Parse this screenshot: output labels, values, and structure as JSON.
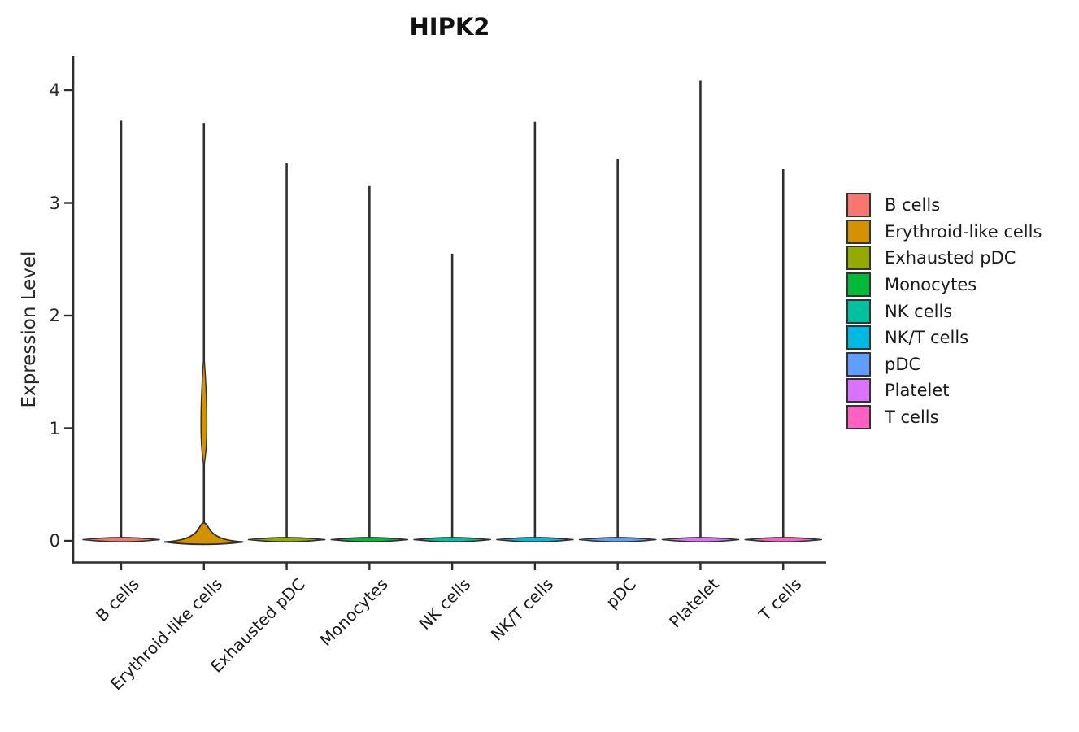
{
  "chart_data": {
    "type": "violin",
    "title": "HIPK2",
    "xlabel": "",
    "ylabel": "Expression Level",
    "ylim": [
      0,
      4.3
    ],
    "yticks": [
      0,
      1,
      2,
      3,
      4
    ],
    "grid": "off",
    "legend_position": "right",
    "axis_color": "#2e2e2e",
    "violin_outline_color": "#303030",
    "categories": [
      "B cells",
      "Erythroid-like cells",
      "Exhausted pDC",
      "Monocytes",
      "NK cells",
      "NK/T cells",
      "pDC",
      "Platelet",
      "T cells"
    ],
    "series": [
      {
        "name": "B cells",
        "color": "#F8766D",
        "max_expression": 3.73,
        "density_peak_at": 0
      },
      {
        "name": "Erythroid-like cells",
        "color": "#D39200",
        "max_expression": 3.71,
        "density_peak_at": 0,
        "base_bulge_peak_value": 0.16,
        "mid_spindle_value_range": [
          0.66,
          1.65
        ]
      },
      {
        "name": "Exhausted pDC",
        "color": "#93AA00",
        "max_expression": 3.35,
        "density_peak_at": 0
      },
      {
        "name": "Monocytes",
        "color": "#00BA38",
        "max_expression": 3.15,
        "density_peak_at": 0
      },
      {
        "name": "NK cells",
        "color": "#00C19F",
        "max_expression": 2.55,
        "density_peak_at": 0
      },
      {
        "name": "NK/T cells",
        "color": "#00B9E3",
        "max_expression": 3.72,
        "density_peak_at": 0
      },
      {
        "name": "pDC",
        "color": "#619CFF",
        "max_expression": 3.39,
        "density_peak_at": 0
      },
      {
        "name": "Platelet",
        "color": "#DB72FB",
        "max_expression": 4.09,
        "density_peak_at": 0
      },
      {
        "name": "T cells",
        "color": "#FF61C3",
        "max_expression": 3.3,
        "density_peak_at": 0
      }
    ]
  }
}
